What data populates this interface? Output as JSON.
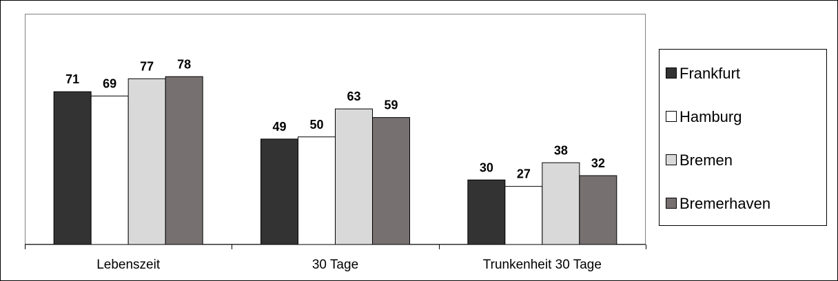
{
  "chart_data": {
    "type": "bar",
    "title": "",
    "xlabel": "",
    "ylabel": "",
    "ylim": [
      0,
      100
    ],
    "grid": false,
    "legend_position": "right",
    "categories": [
      "Lebenszeit",
      "30 Tage",
      "Trunkenheit 30 Tage"
    ],
    "series": [
      {
        "name": "Frankfurt",
        "values": [
          71,
          49,
          30
        ],
        "color": "#333333"
      },
      {
        "name": "Hamburg",
        "values": [
          69,
          50,
          27
        ],
        "color": "#ffffff"
      },
      {
        "name": "Bremen",
        "values": [
          77,
          63,
          38
        ],
        "color": "#d9d9d9"
      },
      {
        "name": "Bremerhaven",
        "values": [
          78,
          59,
          32
        ],
        "color": "#777070"
      }
    ]
  }
}
